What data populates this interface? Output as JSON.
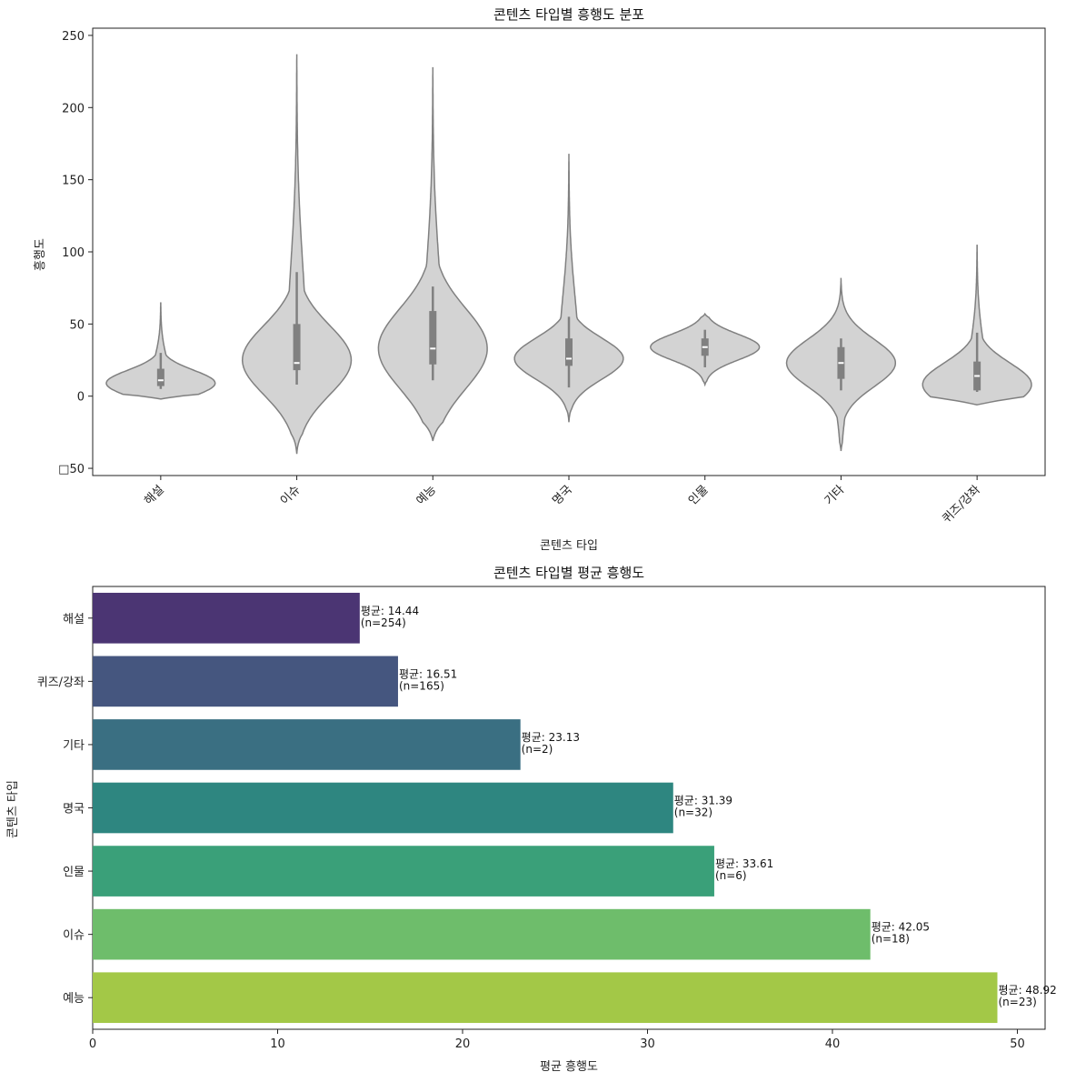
{
  "chart_data": [
    {
      "type": "violin",
      "title": "콘텐츠 타입별 흥행도 분포",
      "xlabel": "콘텐츠 타입",
      "ylabel": "흥행도",
      "ylim": [
        -55,
        255
      ],
      "yticks": [
        -50,
        0,
        50,
        100,
        150,
        200,
        250
      ],
      "ytick_labels": [
        "□50",
        "0",
        "50",
        "100",
        "150",
        "200",
        "250"
      ],
      "grid": false,
      "violin_color": "#d3d3d3",
      "edge_color": "#808080",
      "categories": [
        "해설",
        "이슈",
        "예능",
        "명국",
        "인물",
        "기타",
        "퀴즈/강좌"
      ],
      "series": [
        {
          "min": 5,
          "q1": 7,
          "median": 11,
          "q3": 19,
          "max": 30,
          "kde_min": -2,
          "kde_max": 65,
          "mode": 9
        },
        {
          "min": 8,
          "q1": 18,
          "median": 23,
          "q3": 50,
          "max": 86,
          "kde_min": -40,
          "kde_max": 237,
          "mode": 25
        },
        {
          "min": 11,
          "q1": 22,
          "median": 33,
          "q3": 59,
          "max": 76,
          "kde_min": -31,
          "kde_max": 228,
          "mode": 33
        },
        {
          "min": 6,
          "q1": 21,
          "median": 26,
          "q3": 40,
          "max": 55,
          "kde_min": -18,
          "kde_max": 168,
          "mode": 26
        },
        {
          "min": 20,
          "q1": 28,
          "median": 34,
          "q3": 40,
          "max": 46,
          "kde_min": 8,
          "kde_max": 57,
          "mode": 34
        },
        {
          "min": 4,
          "q1": 12,
          "median": 23,
          "q3": 34,
          "max": 40,
          "kde_min": -38,
          "kde_max": 82,
          "mode": 23
        },
        {
          "min": 3,
          "q1": 4,
          "median": 14,
          "q3": 24,
          "max": 44,
          "kde_min": -6,
          "kde_max": 105,
          "mode": 8
        }
      ]
    },
    {
      "type": "bar",
      "orientation": "horizontal",
      "title": "콘텐츠 타입별 평균 흥행도",
      "xlabel": "평균 흥행도",
      "ylabel": "콘텐츠 타입",
      "xlim": [
        0,
        51.5
      ],
      "xticks": [
        0,
        10,
        20,
        30,
        40,
        50
      ],
      "grid": false,
      "categories": [
        "해설",
        "퀴즈/강좌",
        "기타",
        "명국",
        "인물",
        "이슈",
        "예능"
      ],
      "values": [
        14.44,
        16.51,
        23.13,
        31.39,
        33.61,
        42.05,
        48.92
      ],
      "labels_line1": [
        "평균: 14.44",
        "평균: 16.51",
        "평균: 23.13",
        "평균: 31.39",
        "평균: 33.61",
        "평균: 42.05",
        "평균: 48.92"
      ],
      "labels_line2": [
        "(n=254)",
        "(n=165)",
        "(n=2)",
        "(n=32)",
        "(n=6)",
        "(n=18)",
        "(n=23)"
      ],
      "colors": [
        "#4b3573",
        "#45567f",
        "#3a6f82",
        "#2e8680",
        "#3aa079",
        "#6ebd6b",
        "#a3c847"
      ]
    }
  ]
}
